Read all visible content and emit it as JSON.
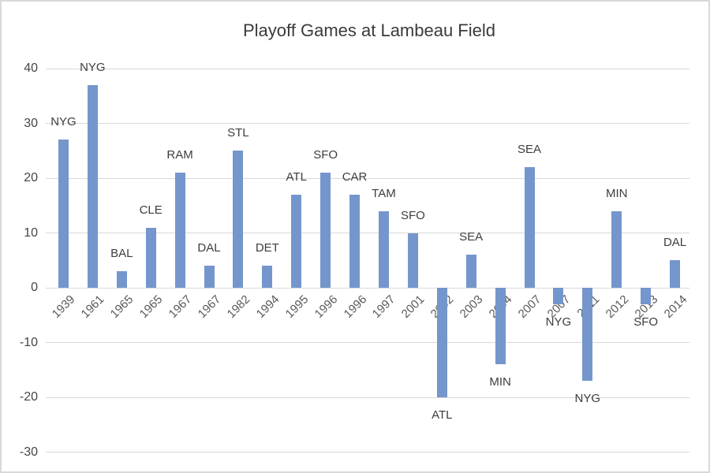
{
  "chart_data": {
    "type": "bar",
    "title": "Playoff Games at Lambeau Field",
    "categories": [
      "1939",
      "1961",
      "1965",
      "1965",
      "1967",
      "1967",
      "1982",
      "1994",
      "1995",
      "1996",
      "1996",
      "1997",
      "2001",
      "2002",
      "2003",
      "2004",
      "2007",
      "2007",
      "2011",
      "2012",
      "2013",
      "2014"
    ],
    "bar_labels": [
      "NYG",
      "NYG",
      "BAL",
      "CLE",
      "RAM",
      "DAL",
      "STL",
      "DET",
      "ATL",
      "SFO",
      "CAR",
      "TAM",
      "SFO",
      "ATL",
      "SEA",
      "MIN",
      "SEA",
      "NYG",
      "NYG",
      "MIN",
      "SFO",
      "DAL"
    ],
    "values": [
      27,
      37,
      3,
      11,
      21,
      4,
      25,
      4,
      17,
      21,
      17,
      14,
      10,
      -20,
      6,
      -14,
      22,
      -3,
      -17,
      14,
      -3,
      5
    ],
    "yticks": [
      40,
      30,
      20,
      10,
      0,
      -10,
      -20,
      -30
    ],
    "ylim": [
      -30,
      40
    ],
    "xlabel": "",
    "ylabel": "",
    "grid": "horizontal",
    "legend": "none",
    "bar_color": "#7496CC",
    "gridline_color": "#d9d9d9",
    "title_color": "#3a3a3a",
    "axis_label_color": "#595959"
  }
}
